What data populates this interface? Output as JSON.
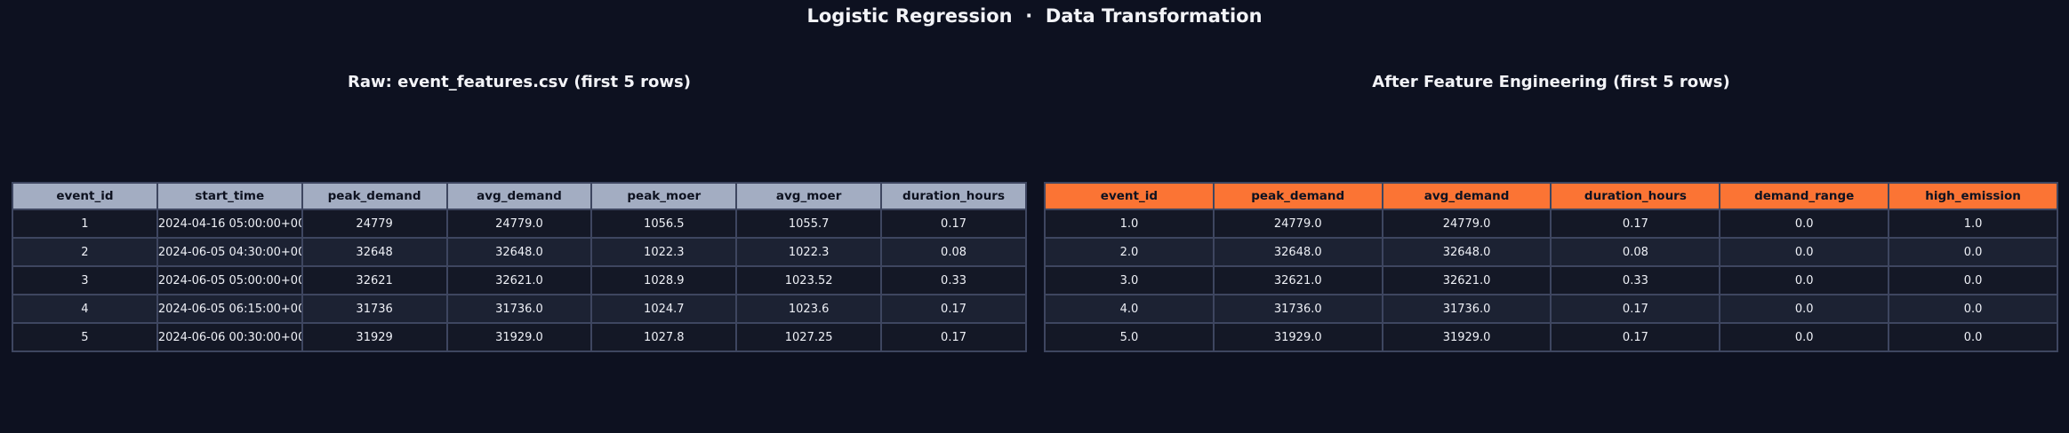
{
  "page": {
    "title": "Logistic Regression  ·  Data Transformation"
  },
  "colors": {
    "background": "#0d1120",
    "raw_header_bg": "#a3adc2",
    "fe_header_bg": "#fb7434",
    "header_text": "#0e1220",
    "cell_text": "#eef0f6",
    "row_odd": "#141826",
    "row_even": "#1c2233",
    "border": "#3e4660",
    "title_text": "#f2f3f7"
  },
  "chart_data": [
    {
      "type": "table",
      "title": "Raw: event_features.csv (first 5 rows)",
      "columns": [
        "event_id",
        "start_time",
        "peak_demand",
        "avg_demand",
        "peak_moer",
        "avg_moer",
        "duration_hours"
      ],
      "rows": [
        [
          "1",
          "2024-04-16 05:00:00+00",
          "24779",
          "24779.0",
          "1056.5",
          "1055.7",
          "0.17"
        ],
        [
          "2",
          "2024-06-05 04:30:00+00",
          "32648",
          "32648.0",
          "1022.3",
          "1022.3",
          "0.08"
        ],
        [
          "3",
          "2024-06-05 05:00:00+00",
          "32621",
          "32621.0",
          "1028.9",
          "1023.52",
          "0.33"
        ],
        [
          "4",
          "2024-06-05 06:15:00+00",
          "31736",
          "31736.0",
          "1024.7",
          "1023.6",
          "0.17"
        ],
        [
          "5",
          "2024-06-06 00:30:00+00",
          "31929",
          "31929.0",
          "1027.8",
          "1027.25",
          "0.17"
        ]
      ],
      "header_color": "#a3adc2",
      "legend_position": "none",
      "grid": true
    },
    {
      "type": "table",
      "title": "After Feature Engineering (first 5 rows)",
      "columns": [
        "event_id",
        "peak_demand",
        "avg_demand",
        "duration_hours",
        "demand_range",
        "high_emission"
      ],
      "rows": [
        [
          "1.0",
          "24779.0",
          "24779.0",
          "0.17",
          "0.0",
          "1.0"
        ],
        [
          "2.0",
          "32648.0",
          "32648.0",
          "0.08",
          "0.0",
          "0.0"
        ],
        [
          "3.0",
          "32621.0",
          "32621.0",
          "0.33",
          "0.0",
          "0.0"
        ],
        [
          "4.0",
          "31736.0",
          "31736.0",
          "0.17",
          "0.0",
          "0.0"
        ],
        [
          "5.0",
          "31929.0",
          "31929.0",
          "0.17",
          "0.0",
          "0.0"
        ]
      ],
      "header_color": "#fb7434",
      "legend_position": "none",
      "grid": true
    }
  ]
}
